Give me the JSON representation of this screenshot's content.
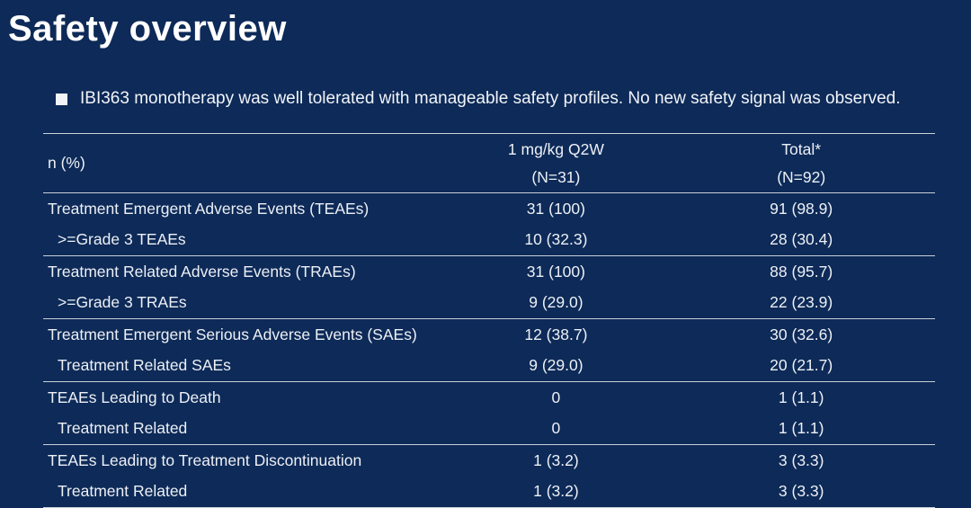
{
  "slide": {
    "title": "Safety overview",
    "bullet": "IBI363 monotherapy was well tolerated with manageable safety profiles. No new safety signal was observed."
  },
  "colors": {
    "background": "#0D2A58",
    "text": "#EDF0F5",
    "line": "#C9D0D9"
  },
  "table": {
    "row_header": "n (%)",
    "columns": [
      {
        "label": "1 mg/kg Q2W",
        "sublabel": "(N=31)"
      },
      {
        "label": "Total*",
        "sublabel": "(N=92)"
      }
    ],
    "rows": [
      {
        "label": "Treatment Emergent Adverse Events (TEAEs)",
        "indent": false,
        "values": [
          "31 (100)",
          "91 (98.9)"
        ]
      },
      {
        "label": ">=Grade 3 TEAEs",
        "indent": true,
        "values": [
          "10 (32.3)",
          "28 (30.4)"
        ]
      },
      {
        "label": "Treatment Related Adverse Events (TRAEs)",
        "indent": false,
        "values": [
          "31 (100)",
          "88 (95.7)"
        ]
      },
      {
        "label": ">=Grade 3 TRAEs",
        "indent": true,
        "values": [
          "9 (29.0)",
          "22 (23.9)"
        ]
      },
      {
        "label": "Treatment Emergent Serious Adverse Events (SAEs)",
        "indent": false,
        "values": [
          "12 (38.7)",
          "30 (32.6)"
        ]
      },
      {
        "label": "Treatment Related SAEs",
        "indent": true,
        "values": [
          "9 (29.0)",
          "20 (21.7)"
        ]
      },
      {
        "label": "TEAEs Leading to Death",
        "indent": false,
        "values": [
          "0",
          "1 (1.1)"
        ]
      },
      {
        "label": "Treatment Related",
        "indent": true,
        "values": [
          "0",
          "1 (1.1)"
        ]
      },
      {
        "label": "TEAEs Leading to Treatment Discontinuation",
        "indent": false,
        "values": [
          "1 (3.2)",
          "3 (3.3)"
        ]
      },
      {
        "label": "Treatment Related",
        "indent": true,
        "values": [
          "1 (3.2)",
          "3 (3.3)"
        ]
      }
    ]
  }
}
